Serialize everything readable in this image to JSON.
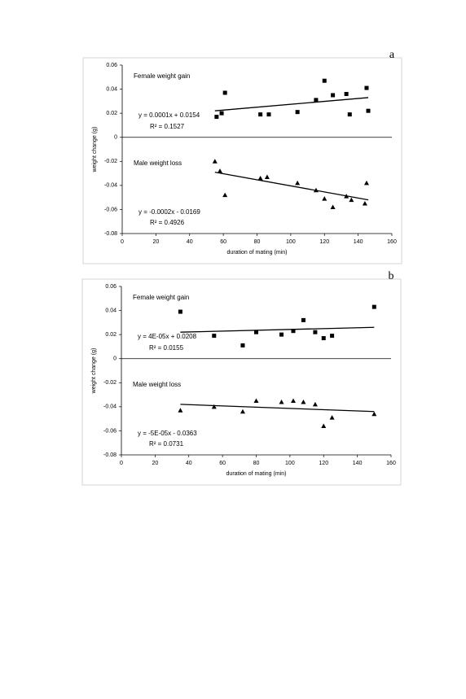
{
  "chart_data": [
    {
      "type": "scatter",
      "panel": "a",
      "xlabel": "duration of mating (min)",
      "ylabel": "weight change (g)",
      "xlim": [
        0,
        160
      ],
      "xticks": [
        0,
        20,
        40,
        60,
        80,
        100,
        120,
        140,
        160
      ],
      "ylim": [
        -0.08,
        0.06
      ],
      "yticks": [
        0.06,
        0.04,
        0.02,
        0,
        -0.02,
        -0.04,
        -0.06,
        -0.08
      ],
      "series": [
        {
          "name": "Female weight gain",
          "marker": "square",
          "color": "#000000",
          "x": [
            56,
            59,
            61,
            82,
            87,
            104,
            115,
            120,
            125,
            133,
            135,
            145,
            146
          ],
          "values": [
            0.017,
            0.02,
            0.037,
            0.019,
            0.019,
            0.021,
            0.031,
            0.047,
            0.035,
            0.036,
            0.019,
            0.041,
            0.022
          ],
          "trendline": {
            "x": [
              55,
              146
            ],
            "values": [
              0.022,
              0.033
            ]
          },
          "equation": "y = 0.0001x + 0.0154",
          "r2": "R² = 0.1527"
        },
        {
          "name": "Male weight loss",
          "marker": "triangle",
          "color": "#000000",
          "x": [
            55,
            58,
            61,
            82,
            86,
            104,
            115,
            120,
            125,
            133,
            136,
            144,
            145
          ],
          "values": [
            -0.02,
            -0.028,
            -0.048,
            -0.034,
            -0.033,
            -0.038,
            -0.044,
            -0.051,
            -0.058,
            -0.049,
            -0.052,
            -0.055,
            -0.038
          ],
          "trendline": {
            "x": [
              55,
              146
            ],
            "values": [
              -0.029,
              -0.052
            ]
          },
          "equation": "y = -0.0002x - 0.0169",
          "r2": "R² = 0.4926"
        }
      ]
    },
    {
      "type": "scatter",
      "panel": "b",
      "xlabel": "duration of mating (min)",
      "ylabel": "weight change (g)",
      "xlim": [
        0,
        160
      ],
      "xticks": [
        0,
        20,
        40,
        60,
        80,
        100,
        120,
        140,
        160
      ],
      "ylim": [
        -0.08,
        0.06
      ],
      "yticks": [
        0.06,
        0.04,
        0.02,
        0,
        -0.02,
        -0.04,
        -0.06,
        -0.08
      ],
      "series": [
        {
          "name": "Female weight gain",
          "marker": "square",
          "color": "#000000",
          "x": [
            35,
            55,
            72,
            80,
            95,
            102,
            108,
            115,
            120,
            125,
            150
          ],
          "values": [
            0.039,
            0.019,
            0.011,
            0.022,
            0.02,
            0.023,
            0.032,
            0.022,
            0.017,
            0.019,
            0.043
          ],
          "trendline": {
            "x": [
              35,
              150
            ],
            "values": [
              0.022,
              0.026
            ]
          },
          "equation": "y = 4E-05x + 0.0208",
          "r2": "R² = 0.0155"
        },
        {
          "name": "Male weight loss",
          "marker": "triangle",
          "color": "#000000",
          "x": [
            35,
            55,
            72,
            80,
            95,
            102,
            108,
            115,
            120,
            125,
            150
          ],
          "values": [
            -0.043,
            -0.04,
            -0.044,
            -0.035,
            -0.036,
            -0.035,
            -0.036,
            -0.038,
            -0.056,
            -0.049,
            -0.046
          ],
          "trendline": {
            "x": [
              35,
              150
            ],
            "values": [
              -0.038,
              -0.044
            ]
          },
          "equation": "y = -5E-05x - 0.0363",
          "r2": "R² = 0.0731"
        }
      ]
    }
  ]
}
